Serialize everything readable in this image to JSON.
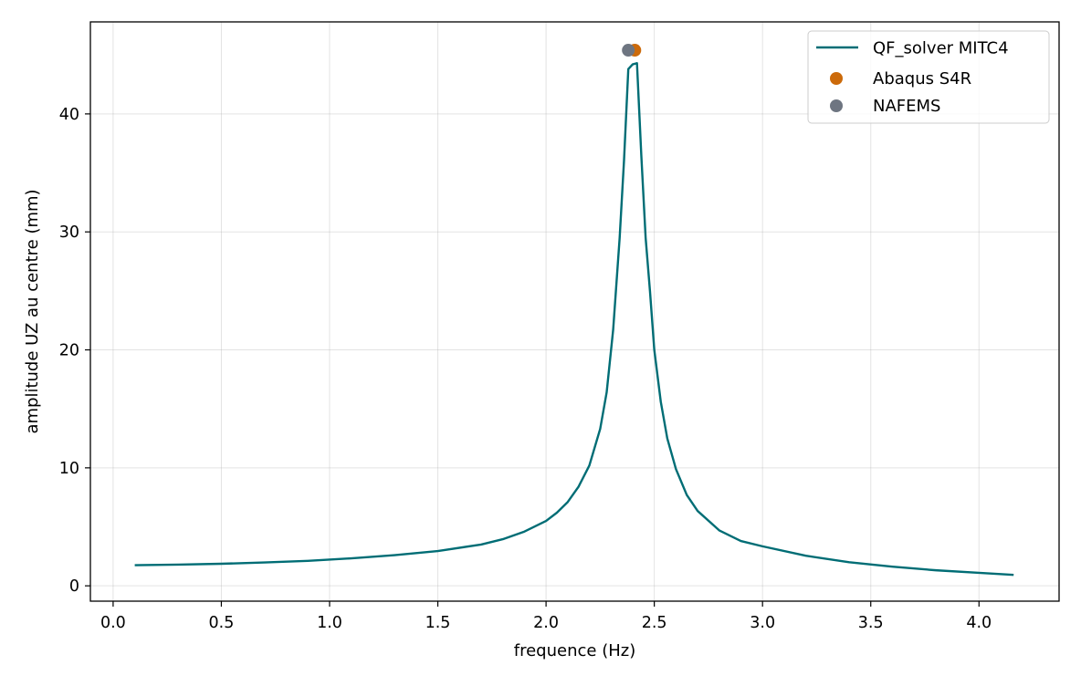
{
  "chart_data": {
    "type": "line",
    "title": "",
    "xlabel": "frequence (Hz)",
    "ylabel": "amplitude UZ au centre (mm)",
    "xlim": [
      -0.105,
      4.37
    ],
    "ylim": [
      -1.3,
      47.8
    ],
    "xticks": [
      0.0,
      0.5,
      1.0,
      1.5,
      2.0,
      2.5,
      3.0,
      3.5,
      4.0
    ],
    "xtick_labels": [
      "0.0",
      "0.5",
      "1.0",
      "1.5",
      "2.0",
      "2.5",
      "3.0",
      "3.5",
      "4.0"
    ],
    "yticks": [
      0,
      10,
      20,
      30,
      40
    ],
    "ytick_labels": [
      "0",
      "10",
      "20",
      "30",
      "40"
    ],
    "grid": true,
    "legend_position": "top-right",
    "series": [
      {
        "name": "QF_solver MITC4",
        "kind": "line",
        "color": "#006d75",
        "x": [
          0.1,
          0.3,
          0.5,
          0.7,
          0.9,
          1.1,
          1.3,
          1.5,
          1.7,
          1.8,
          1.9,
          2.0,
          2.05,
          2.1,
          2.15,
          2.2,
          2.25,
          2.28,
          2.31,
          2.34,
          2.36,
          2.38,
          2.4,
          2.42,
          2.44,
          2.46,
          2.48,
          2.5,
          2.53,
          2.56,
          2.6,
          2.65,
          2.7,
          2.8,
          2.9,
          3.0,
          3.2,
          3.4,
          3.6,
          3.8,
          4.0,
          4.16
        ],
        "y": [
          1.75,
          1.8,
          1.87,
          1.98,
          2.12,
          2.33,
          2.6,
          2.95,
          3.5,
          3.95,
          4.6,
          5.5,
          6.2,
          7.1,
          8.4,
          10.2,
          13.3,
          16.4,
          21.7,
          29.5,
          36.0,
          43.8,
          44.2,
          44.3,
          36.5,
          29.5,
          25.0,
          20.0,
          15.6,
          12.5,
          9.9,
          7.7,
          6.35,
          4.7,
          3.8,
          3.35,
          2.55,
          2.0,
          1.62,
          1.32,
          1.1,
          0.93
        ]
      },
      {
        "name": "Abaqus S4R",
        "kind": "scatter",
        "color": "#cc6a0a",
        "x": [
          2.41
        ],
        "y": [
          45.4
        ]
      },
      {
        "name": "NAFEMS",
        "kind": "scatter",
        "color": "#6e7581",
        "x": [
          2.38
        ],
        "y": [
          45.4
        ]
      }
    ]
  }
}
